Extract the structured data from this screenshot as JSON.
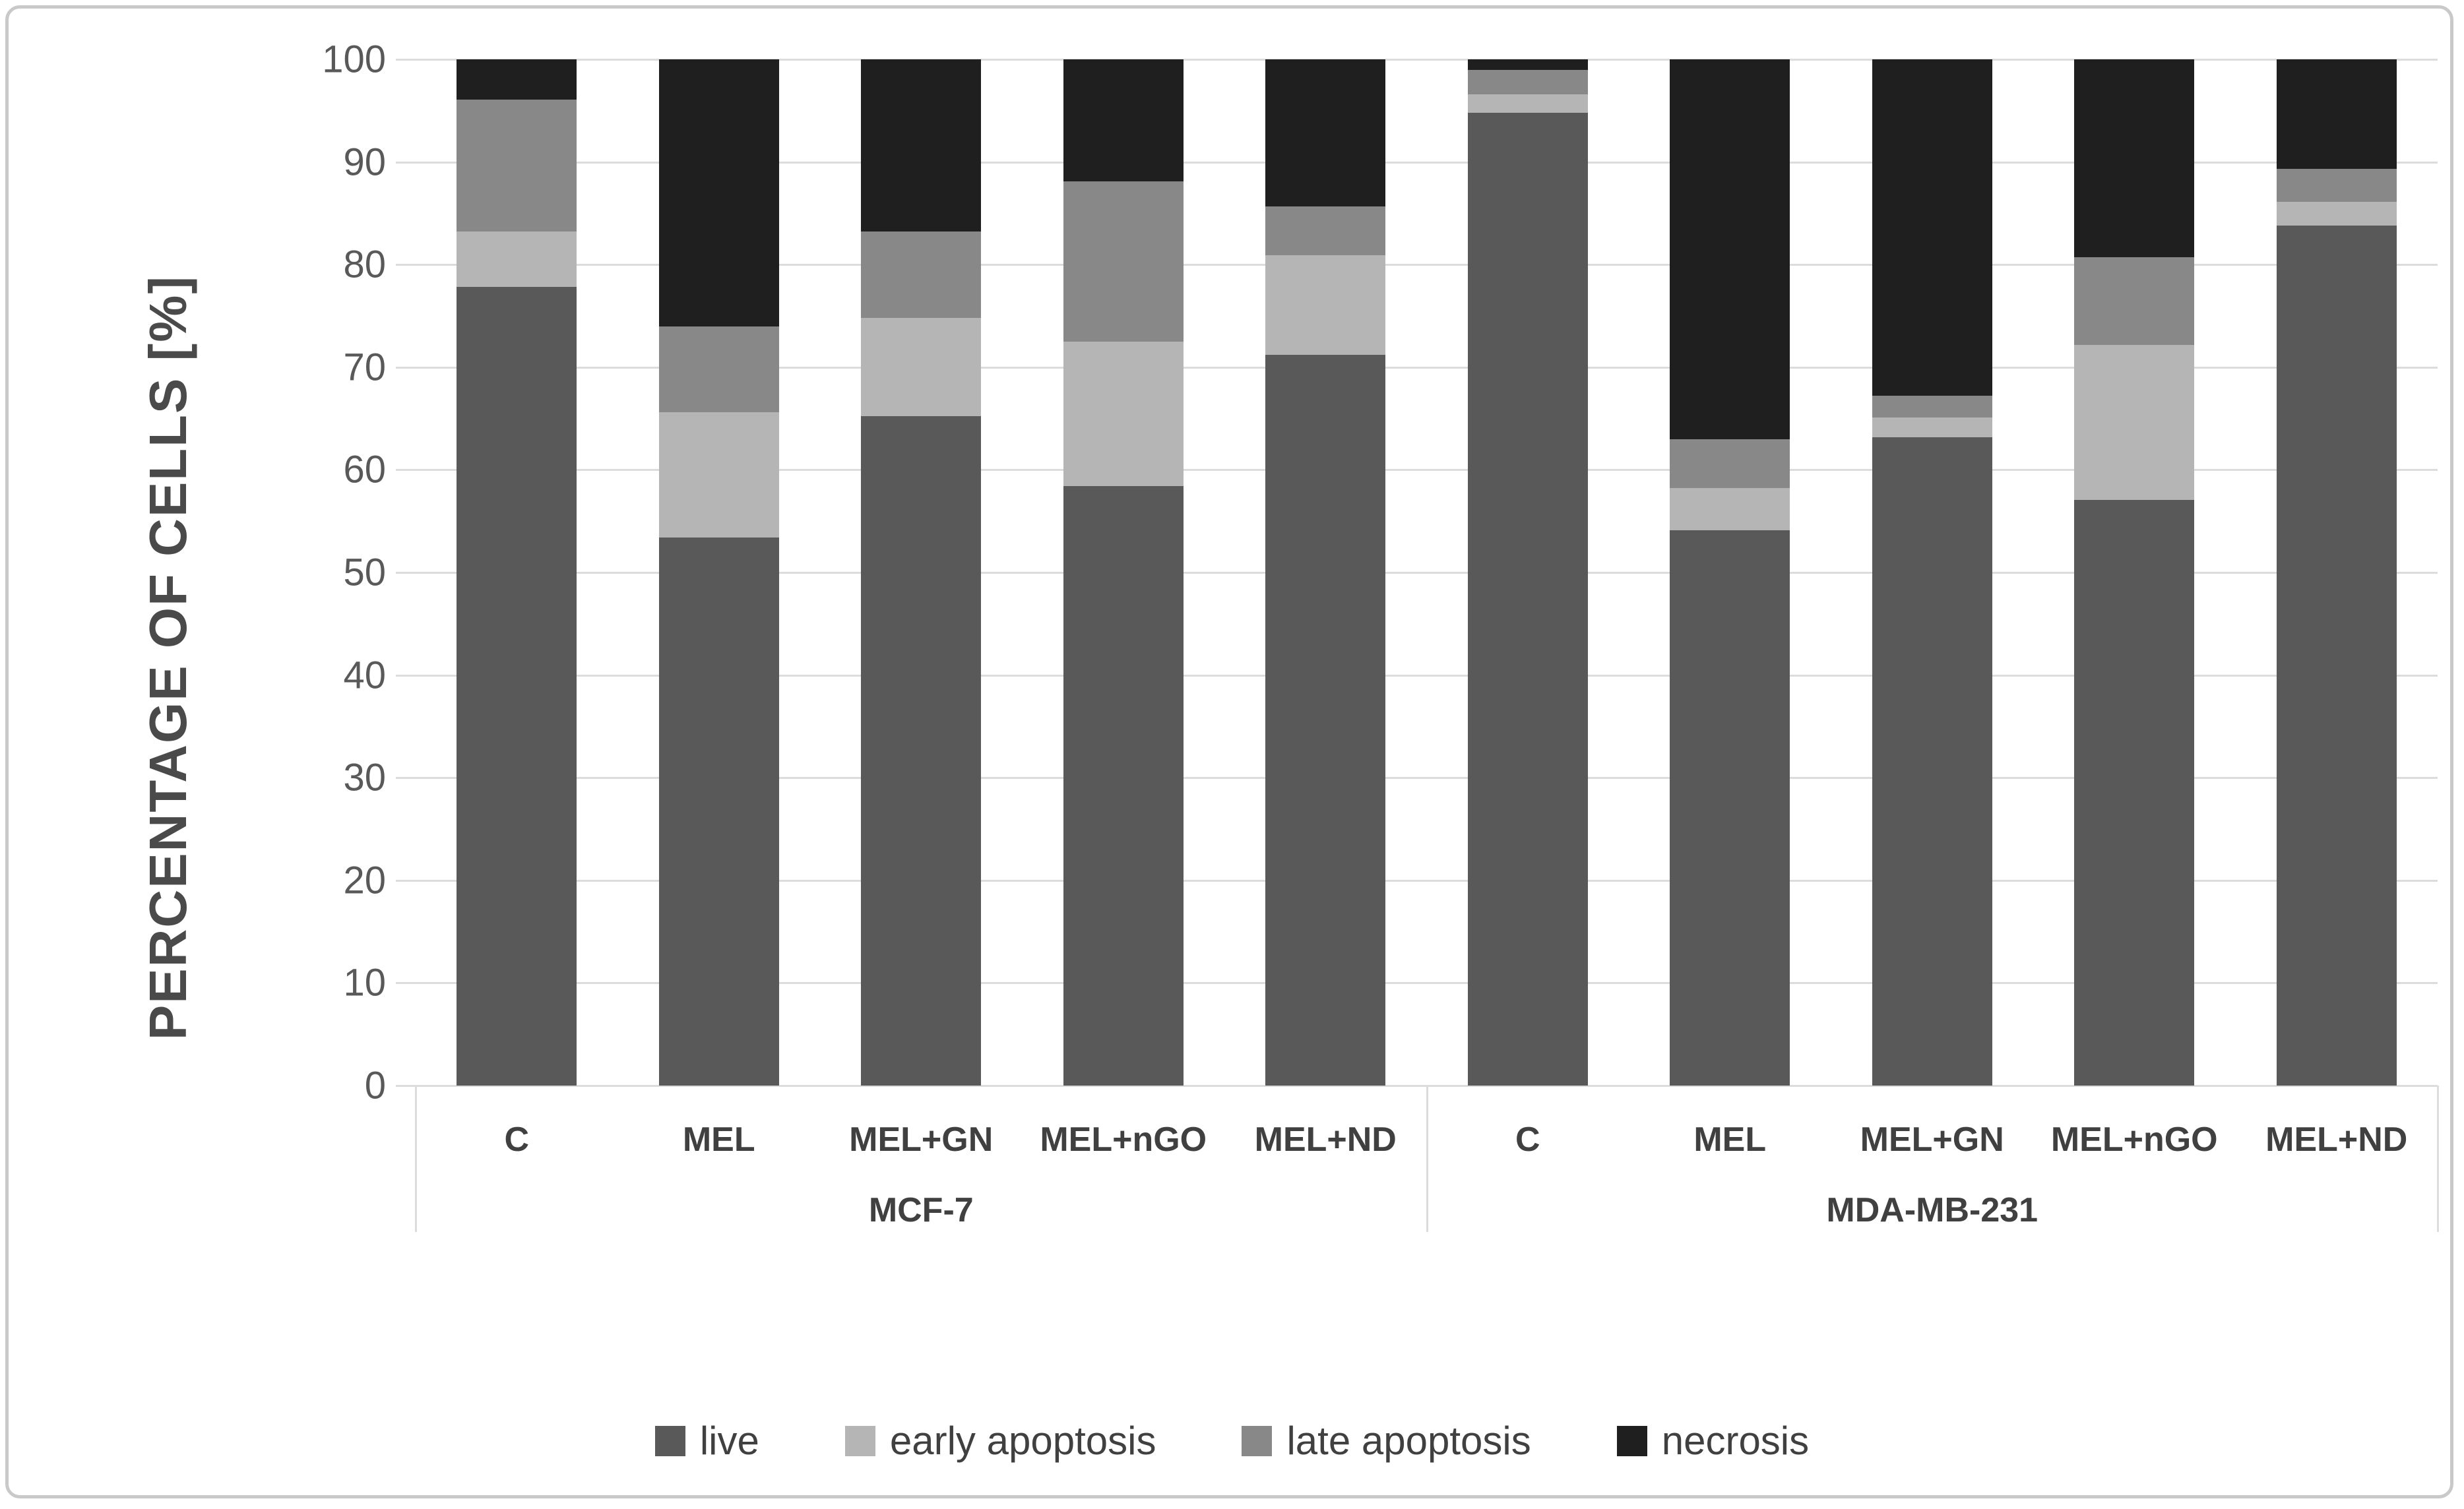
{
  "chart_data": {
    "type": "bar",
    "stacked": true,
    "title": "",
    "ylabel": "PERCENTAGE OF CELLS [%]",
    "xlabel": "",
    "ylim": [
      0,
      100
    ],
    "yticks": [
      0,
      10,
      20,
      30,
      40,
      50,
      60,
      70,
      80,
      90,
      100
    ],
    "grid": true,
    "legend_position": "bottom",
    "groups": [
      {
        "label": "MCF-7",
        "categories": [
          "C",
          "MEL",
          "MEL+GN",
          "MEL+nGO",
          "MEL+ND"
        ]
      },
      {
        "label": "MDA-MB-231",
        "categories": [
          "C",
          "MEL",
          "MEL+GN",
          "MEL+nGO",
          "MEL+ND"
        ]
      }
    ],
    "categories": [
      "C",
      "MEL",
      "MEL+GN",
      "MEL+nGO",
      "MEL+ND",
      "C",
      "MEL",
      "MEL+GN",
      "MEL+nGO",
      "MEL+ND"
    ],
    "series": [
      {
        "name": "live",
        "color": "#595959",
        "values": [
          77.8,
          53.4,
          65.2,
          58.4,
          71.2,
          94.8,
          54.1,
          63.2,
          57.1,
          83.8
        ]
      },
      {
        "name": "early apoptosis",
        "color": "#b5b5b5",
        "values": [
          5.4,
          12.2,
          9.6,
          14.1,
          9.7,
          1.8,
          4.1,
          1.9,
          15.1,
          2.3
        ]
      },
      {
        "name": "late apoptosis",
        "color": "#888888",
        "values": [
          12.9,
          8.4,
          8.4,
          15.6,
          4.8,
          2.4,
          4.8,
          2.1,
          8.5,
          3.2
        ]
      },
      {
        "name": "necrosis",
        "color": "#1f1f1f",
        "values": [
          3.9,
          26.0,
          16.8,
          11.9,
          14.3,
          1.0,
          37.0,
          32.8,
          19.3,
          10.7
        ]
      }
    ]
  },
  "colors": {
    "gridline": "#dcdcdc",
    "tick_text": "#595959",
    "label_text": "#404040",
    "frame_border": "#c9c9c9"
  }
}
